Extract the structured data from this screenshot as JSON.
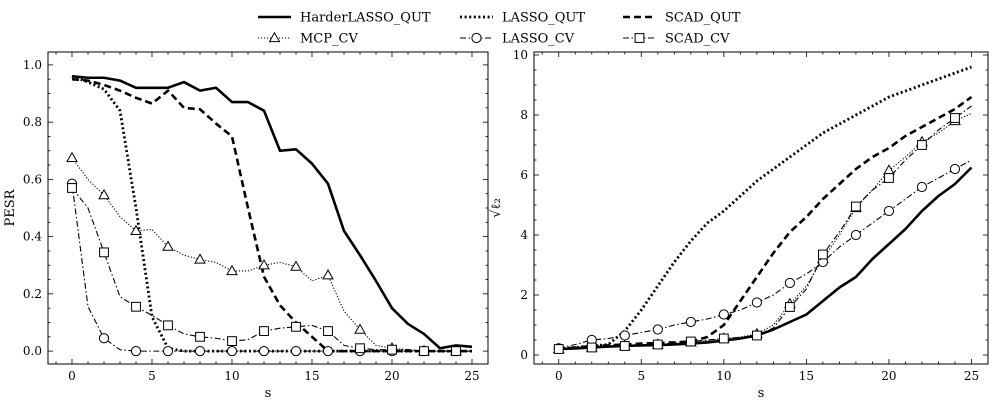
{
  "legend": {
    "placement": "top-center",
    "entries": [
      {
        "name": "HarderLASSO_QUT",
        "style": "solid-thick",
        "marker": "none"
      },
      {
        "name": "LASSO_QUT",
        "style": "dotted-thick",
        "marker": "none"
      },
      {
        "name": "SCAD_QUT",
        "style": "dashed-thick",
        "marker": "none"
      },
      {
        "name": "MCP_CV",
        "style": "dotted-thin",
        "marker": "triangle"
      },
      {
        "name": "LASSO_CV",
        "style": "dashdot-thin",
        "marker": "circle"
      },
      {
        "name": "SCAD_CV",
        "style": "dashdot-thin",
        "marker": "square"
      }
    ]
  },
  "chart_data": [
    {
      "type": "line",
      "title": "",
      "xlabel": "s",
      "ylabel": "PESR",
      "xlim": [
        -1.5,
        26
      ],
      "ylim": [
        -0.045,
        1.045
      ],
      "x_ticks": [
        0,
        5,
        10,
        15,
        20,
        25
      ],
      "y_ticks": [
        0.0,
        0.2,
        0.4,
        0.6,
        0.8,
        1.0
      ],
      "y_tick_labels": [
        "0.0",
        "0.2",
        "0.4",
        "0.6",
        "0.8",
        "1.0"
      ],
      "x": [
        0,
        1,
        2,
        3,
        4,
        5,
        6,
        7,
        8,
        9,
        10,
        11,
        12,
        13,
        14,
        15,
        16,
        17,
        18,
        19,
        20,
        21,
        22,
        23,
        24,
        25
      ],
      "series": [
        {
          "name": "HarderLASSO_QUT",
          "values": [
            0.96,
            0.955,
            0.955,
            0.945,
            0.92,
            0.92,
            0.92,
            0.94,
            0.91,
            0.92,
            0.87,
            0.87,
            0.84,
            0.7,
            0.705,
            0.655,
            0.585,
            0.42,
            0.335,
            0.245,
            0.15,
            0.095,
            0.06,
            0.01,
            0.02,
            0.015
          ]
        },
        {
          "name": "LASSO_QUT",
          "values": [
            0.96,
            0.94,
            0.915,
            0.84,
            0.5,
            0.12,
            0.01,
            0.0,
            0.0,
            0.0,
            0.0,
            0.0,
            0.0,
            0.0,
            0.0,
            0.0,
            0.0,
            0.0,
            0.0,
            0.0,
            0.0,
            0.0,
            0.0,
            0.0,
            0.0,
            0.0
          ]
        },
        {
          "name": "SCAD_QUT",
          "values": [
            0.95,
            0.945,
            0.93,
            0.91,
            0.885,
            0.865,
            0.91,
            0.85,
            0.845,
            0.795,
            0.75,
            0.5,
            0.26,
            0.16,
            0.1,
            0.05,
            0.0,
            0.0,
            0.0,
            0.0,
            0.0,
            0.0,
            0.0,
            0.0,
            0.0,
            0.0
          ]
        },
        {
          "name": "MCP_CV",
          "values": [
            0.675,
            0.6,
            0.545,
            0.47,
            0.42,
            0.425,
            0.365,
            0.335,
            0.32,
            0.31,
            0.28,
            0.28,
            0.3,
            0.31,
            0.295,
            0.245,
            0.265,
            0.14,
            0.075,
            0.02,
            0.01,
            0.005,
            0.0,
            0.0,
            0.0,
            0.0
          ]
        },
        {
          "name": "LASSO_CV",
          "values": [
            0.585,
            0.155,
            0.045,
            0.005,
            0.0,
            0.0,
            0.0,
            0.0,
            0.0,
            0.0,
            0.0,
            0.0,
            0.0,
            0.0,
            0.0,
            0.0,
            0.0,
            0.0,
            0.0,
            0.0,
            0.0,
            0.0,
            0.0,
            0.0,
            0.0,
            0.0
          ]
        },
        {
          "name": "SCAD_CV",
          "values": [
            0.57,
            0.5,
            0.345,
            0.19,
            0.155,
            0.125,
            0.09,
            0.06,
            0.05,
            0.045,
            0.035,
            0.04,
            0.07,
            0.08,
            0.085,
            0.09,
            0.07,
            0.02,
            0.01,
            0.005,
            0.005,
            0.005,
            0.0,
            0.0,
            0.0,
            0.0
          ]
        }
      ]
    },
    {
      "type": "line",
      "title": "",
      "xlabel": "s",
      "ylabel": "√ℓ₂",
      "xlim": [
        -1.5,
        26
      ],
      "ylim": [
        -0.3,
        10.1
      ],
      "x_ticks": [
        0,
        5,
        10,
        15,
        20,
        25
      ],
      "y_ticks": [
        0,
        2,
        4,
        6,
        8,
        10
      ],
      "y_tick_labels": [
        "0",
        "2",
        "4",
        "6",
        "8",
        "10"
      ],
      "x": [
        0,
        1,
        2,
        3,
        4,
        5,
        6,
        7,
        8,
        9,
        10,
        11,
        12,
        13,
        14,
        15,
        16,
        17,
        18,
        19,
        20,
        21,
        22,
        23,
        24,
        25
      ],
      "series": [
        {
          "name": "HarderLASSO_QUT",
          "values": [
            0.2,
            0.22,
            0.25,
            0.28,
            0.3,
            0.32,
            0.33,
            0.35,
            0.38,
            0.42,
            0.48,
            0.55,
            0.65,
            0.85,
            1.1,
            1.35,
            1.8,
            2.25,
            2.6,
            3.2,
            3.7,
            4.2,
            4.8,
            5.3,
            5.7,
            6.25
          ]
        },
        {
          "name": "LASSO_QUT",
          "values": [
            0.2,
            0.25,
            0.3,
            0.35,
            0.8,
            1.5,
            2.3,
            3.1,
            3.8,
            4.4,
            4.8,
            5.3,
            5.8,
            6.2,
            6.6,
            7.0,
            7.4,
            7.7,
            8.0,
            8.3,
            8.6,
            8.8,
            9.0,
            9.2,
            9.4,
            9.6
          ]
        },
        {
          "name": "SCAD_QUT",
          "values": [
            0.2,
            0.25,
            0.3,
            0.32,
            0.35,
            0.38,
            0.4,
            0.42,
            0.45,
            0.6,
            1.0,
            1.8,
            2.6,
            3.4,
            4.1,
            4.6,
            5.2,
            5.7,
            6.2,
            6.6,
            6.9,
            7.3,
            7.6,
            7.9,
            8.2,
            8.6
          ]
        },
        {
          "name": "MCP_CV",
          "values": [
            0.2,
            0.22,
            0.25,
            0.28,
            0.3,
            0.32,
            0.35,
            0.38,
            0.42,
            0.48,
            0.55,
            0.6,
            0.7,
            1.0,
            1.7,
            2.3,
            3.2,
            4.0,
            4.9,
            5.5,
            6.15,
            6.6,
            7.1,
            7.4,
            7.8,
            8.05
          ]
        },
        {
          "name": "LASSO_CV",
          "values": [
            0.22,
            0.35,
            0.5,
            0.55,
            0.65,
            0.75,
            0.85,
            1.0,
            1.1,
            1.2,
            1.35,
            1.5,
            1.75,
            2.0,
            2.4,
            2.7,
            3.1,
            3.6,
            4.0,
            4.4,
            4.8,
            5.2,
            5.6,
            5.9,
            6.2,
            6.5
          ]
        },
        {
          "name": "SCAD_CV",
          "values": [
            0.2,
            0.22,
            0.25,
            0.28,
            0.3,
            0.33,
            0.35,
            0.4,
            0.45,
            0.5,
            0.55,
            0.58,
            0.65,
            0.9,
            1.6,
            2.2,
            3.35,
            4.1,
            4.95,
            5.5,
            5.9,
            6.5,
            7.0,
            7.5,
            7.9,
            8.3
          ]
        }
      ]
    }
  ]
}
